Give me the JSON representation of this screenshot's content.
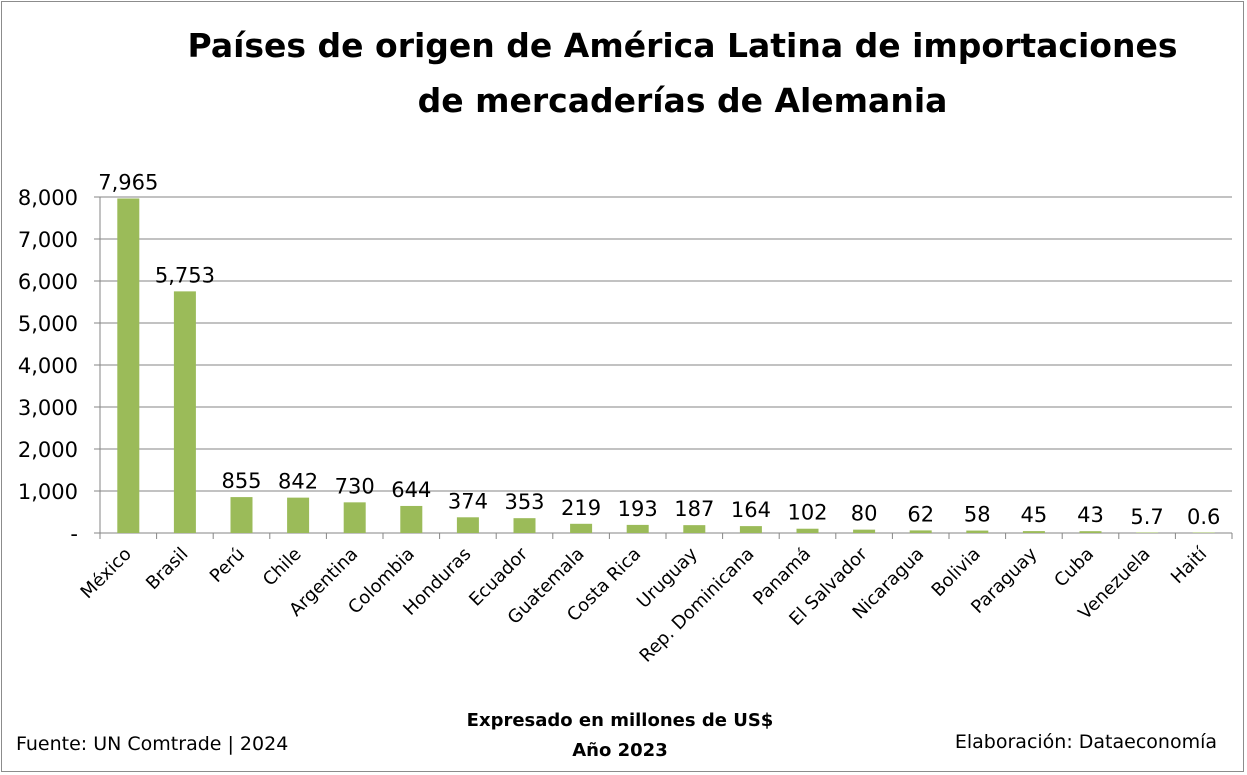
{
  "chart_data": {
    "type": "bar",
    "title_lines": [
      "Países de origen de América Latina de importaciones",
      "de mercaderías de Alemania"
    ],
    "subtitle_lines": [
      "Expresado en millones de US$",
      "Año 2023"
    ],
    "source": "Fuente: UN Comtrade | 2024",
    "credit": "Elaboración: Dataeconomía",
    "categories": [
      "México",
      "Brasil",
      "Perú",
      "Chile",
      "Argentina",
      "Colombia",
      "Honduras",
      "Ecuador",
      "Guatemala",
      "Costa Rica",
      "Uruguay",
      "Rep. Dominicana",
      "Panamá",
      "El Salvador",
      "Nicaragua",
      "Bolivia",
      "Paraguay",
      "Cuba",
      "Venezuela",
      "Haití"
    ],
    "values": [
      7965,
      5753,
      855,
      842,
      730,
      644,
      374,
      353,
      219,
      193,
      187,
      164,
      102,
      80,
      62,
      58,
      45,
      43,
      5.7,
      0.6
    ],
    "data_labels": [
      "7,965",
      "5,753",
      "855",
      "842",
      "730",
      "644",
      "374",
      "353",
      "219",
      "193",
      "187",
      "164",
      "102",
      "80",
      "62",
      "58",
      "45",
      "43",
      "5.7",
      "0.6"
    ],
    "y_ticks": [
      0,
      1000,
      2000,
      3000,
      4000,
      5000,
      6000,
      7000,
      8000
    ],
    "y_tick_labels": [
      "-",
      "1,000",
      "2,000",
      "3,000",
      "4,000",
      "5,000",
      "6,000",
      "7,000",
      "8,000"
    ],
    "ylim": [
      0,
      8000
    ],
    "grid": true,
    "legend": "none",
    "bar_color": "#9bbb59"
  }
}
